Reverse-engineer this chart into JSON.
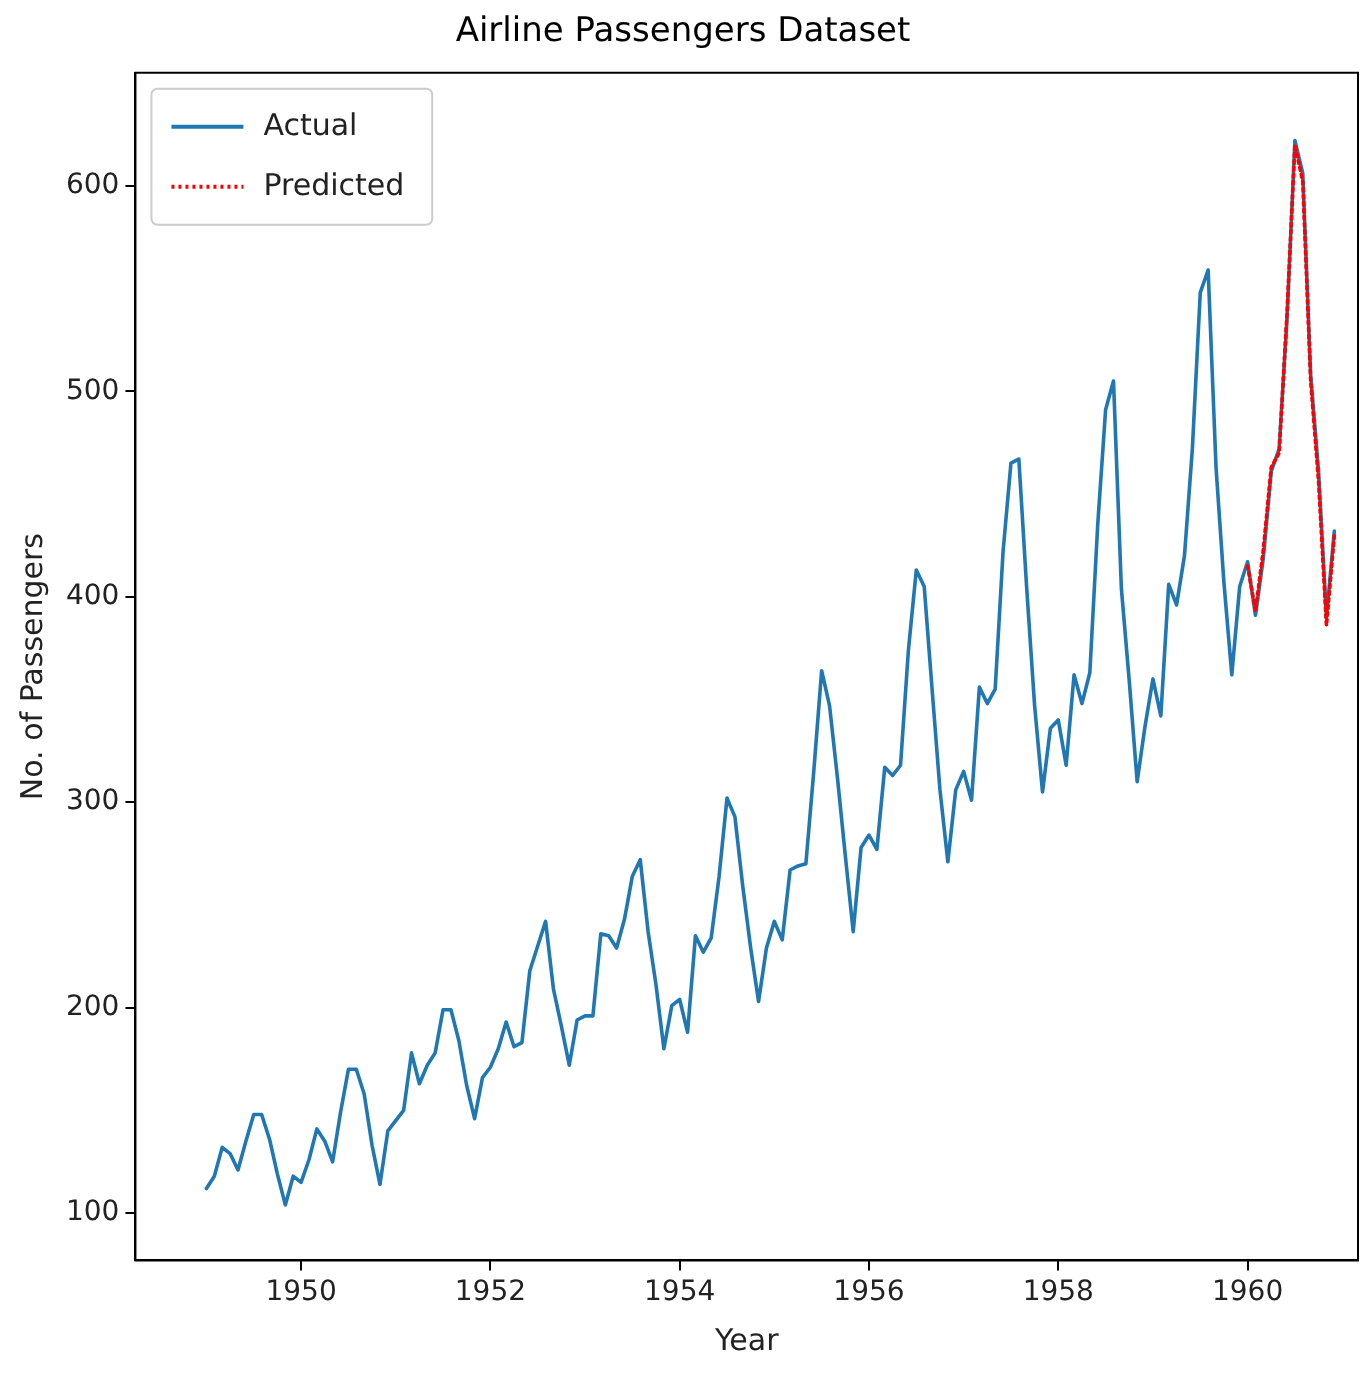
{
  "chart_data": {
    "type": "line",
    "title": "Airline Passengers Dataset",
    "xlabel": "Year",
    "ylabel": "No. of Passengers",
    "xlim": [
      "1948-04",
      "1961-03"
    ],
    "xticks": [
      "1950",
      "1952",
      "1954",
      "1956",
      "1958",
      "1960"
    ],
    "ylim": [
      77,
      655
    ],
    "yticks": [
      100,
      200,
      300,
      400,
      500,
      600
    ],
    "grid": false,
    "legend": "top left",
    "marker": "none",
    "series": [
      {
        "name": "Actual",
        "color": "#1f77b4",
        "line_style": "solid",
        "x": [
          "1949-01",
          "1949-02",
          "1949-03",
          "1949-04",
          "1949-05",
          "1949-06",
          "1949-07",
          "1949-08",
          "1949-09",
          "1949-10",
          "1949-11",
          "1949-12",
          "1950-01",
          "1950-02",
          "1950-03",
          "1950-04",
          "1950-05",
          "1950-06",
          "1950-07",
          "1950-08",
          "1950-09",
          "1950-10",
          "1950-11",
          "1950-12",
          "1951-01",
          "1951-02",
          "1951-03",
          "1951-04",
          "1951-05",
          "1951-06",
          "1951-07",
          "1951-08",
          "1951-09",
          "1951-10",
          "1951-11",
          "1951-12",
          "1952-01",
          "1952-02",
          "1952-03",
          "1952-04",
          "1952-05",
          "1952-06",
          "1952-07",
          "1952-08",
          "1952-09",
          "1952-10",
          "1952-11",
          "1952-12",
          "1953-01",
          "1953-02",
          "1953-03",
          "1953-04",
          "1953-05",
          "1953-06",
          "1953-07",
          "1953-08",
          "1953-09",
          "1953-10",
          "1953-11",
          "1953-12",
          "1954-01",
          "1954-02",
          "1954-03",
          "1954-04",
          "1954-05",
          "1954-06",
          "1954-07",
          "1954-08",
          "1954-09",
          "1954-10",
          "1954-11",
          "1954-12",
          "1955-01",
          "1955-02",
          "1955-03",
          "1955-04",
          "1955-05",
          "1955-06",
          "1955-07",
          "1955-08",
          "1955-09",
          "1955-10",
          "1955-11",
          "1955-12",
          "1956-01",
          "1956-02",
          "1956-03",
          "1956-04",
          "1956-05",
          "1956-06",
          "1956-07",
          "1956-08",
          "1956-09",
          "1956-10",
          "1956-11",
          "1956-12",
          "1957-01",
          "1957-02",
          "1957-03",
          "1957-04",
          "1957-05",
          "1957-06",
          "1957-07",
          "1957-08",
          "1957-09",
          "1957-10",
          "1957-11",
          "1957-12",
          "1958-01",
          "1958-02",
          "1958-03",
          "1958-04",
          "1958-05",
          "1958-06",
          "1958-07",
          "1958-08",
          "1958-09",
          "1958-10",
          "1958-11",
          "1958-12",
          "1959-01",
          "1959-02",
          "1959-03",
          "1959-04",
          "1959-05",
          "1959-06",
          "1959-07",
          "1959-08",
          "1959-09",
          "1959-10",
          "1959-11",
          "1959-12",
          "1960-01",
          "1960-02",
          "1960-03",
          "1960-04",
          "1960-05",
          "1960-06",
          "1960-07",
          "1960-08",
          "1960-09",
          "1960-10",
          "1960-11",
          "1960-12"
        ],
        "values": [
          112,
          118,
          132,
          129,
          121,
          135,
          148,
          148,
          136,
          119,
          104,
          118,
          115,
          126,
          141,
          135,
          125,
          149,
          170,
          170,
          158,
          133,
          114,
          140,
          145,
          150,
          178,
          163,
          172,
          178,
          199,
          199,
          184,
          162,
          146,
          166,
          171,
          180,
          193,
          181,
          183,
          218,
          230,
          242,
          209,
          191,
          172,
          194,
          196,
          196,
          236,
          235,
          229,
          243,
          264,
          272,
          237,
          211,
          180,
          201,
          204,
          188,
          235,
          227,
          234,
          264,
          302,
          293,
          259,
          229,
          203,
          229,
          242,
          233,
          267,
          269,
          270,
          315,
          364,
          347,
          312,
          274,
          237,
          278,
          284,
          277,
          317,
          313,
          318,
          374,
          413,
          405,
          355,
          306,
          271,
          306,
          315,
          301,
          356,
          348,
          355,
          422,
          465,
          467,
          404,
          347,
          305,
          336,
          340,
          318,
          362,
          348,
          363,
          435,
          491,
          505,
          404,
          359,
          310,
          337,
          360,
          342,
          406,
          396,
          420,
          472,
          548,
          559,
          463,
          407,
          362,
          405,
          417,
          391,
          419,
          461,
          472,
          535,
          622,
          606,
          508,
          461,
          390,
          432
        ]
      },
      {
        "name": "Predicted",
        "color": "#ff0000",
        "line_style": "dotted",
        "x": [
          "1960-01",
          "1960-02",
          "1960-03",
          "1960-04",
          "1960-05",
          "1960-06",
          "1960-07",
          "1960-08",
          "1960-09",
          "1960-10",
          "1960-11",
          "1960-12"
        ],
        "values": [
          415,
          393,
          423,
          463,
          470,
          538,
          620,
          602,
          505,
          456,
          386,
          430
        ]
      }
    ]
  }
}
